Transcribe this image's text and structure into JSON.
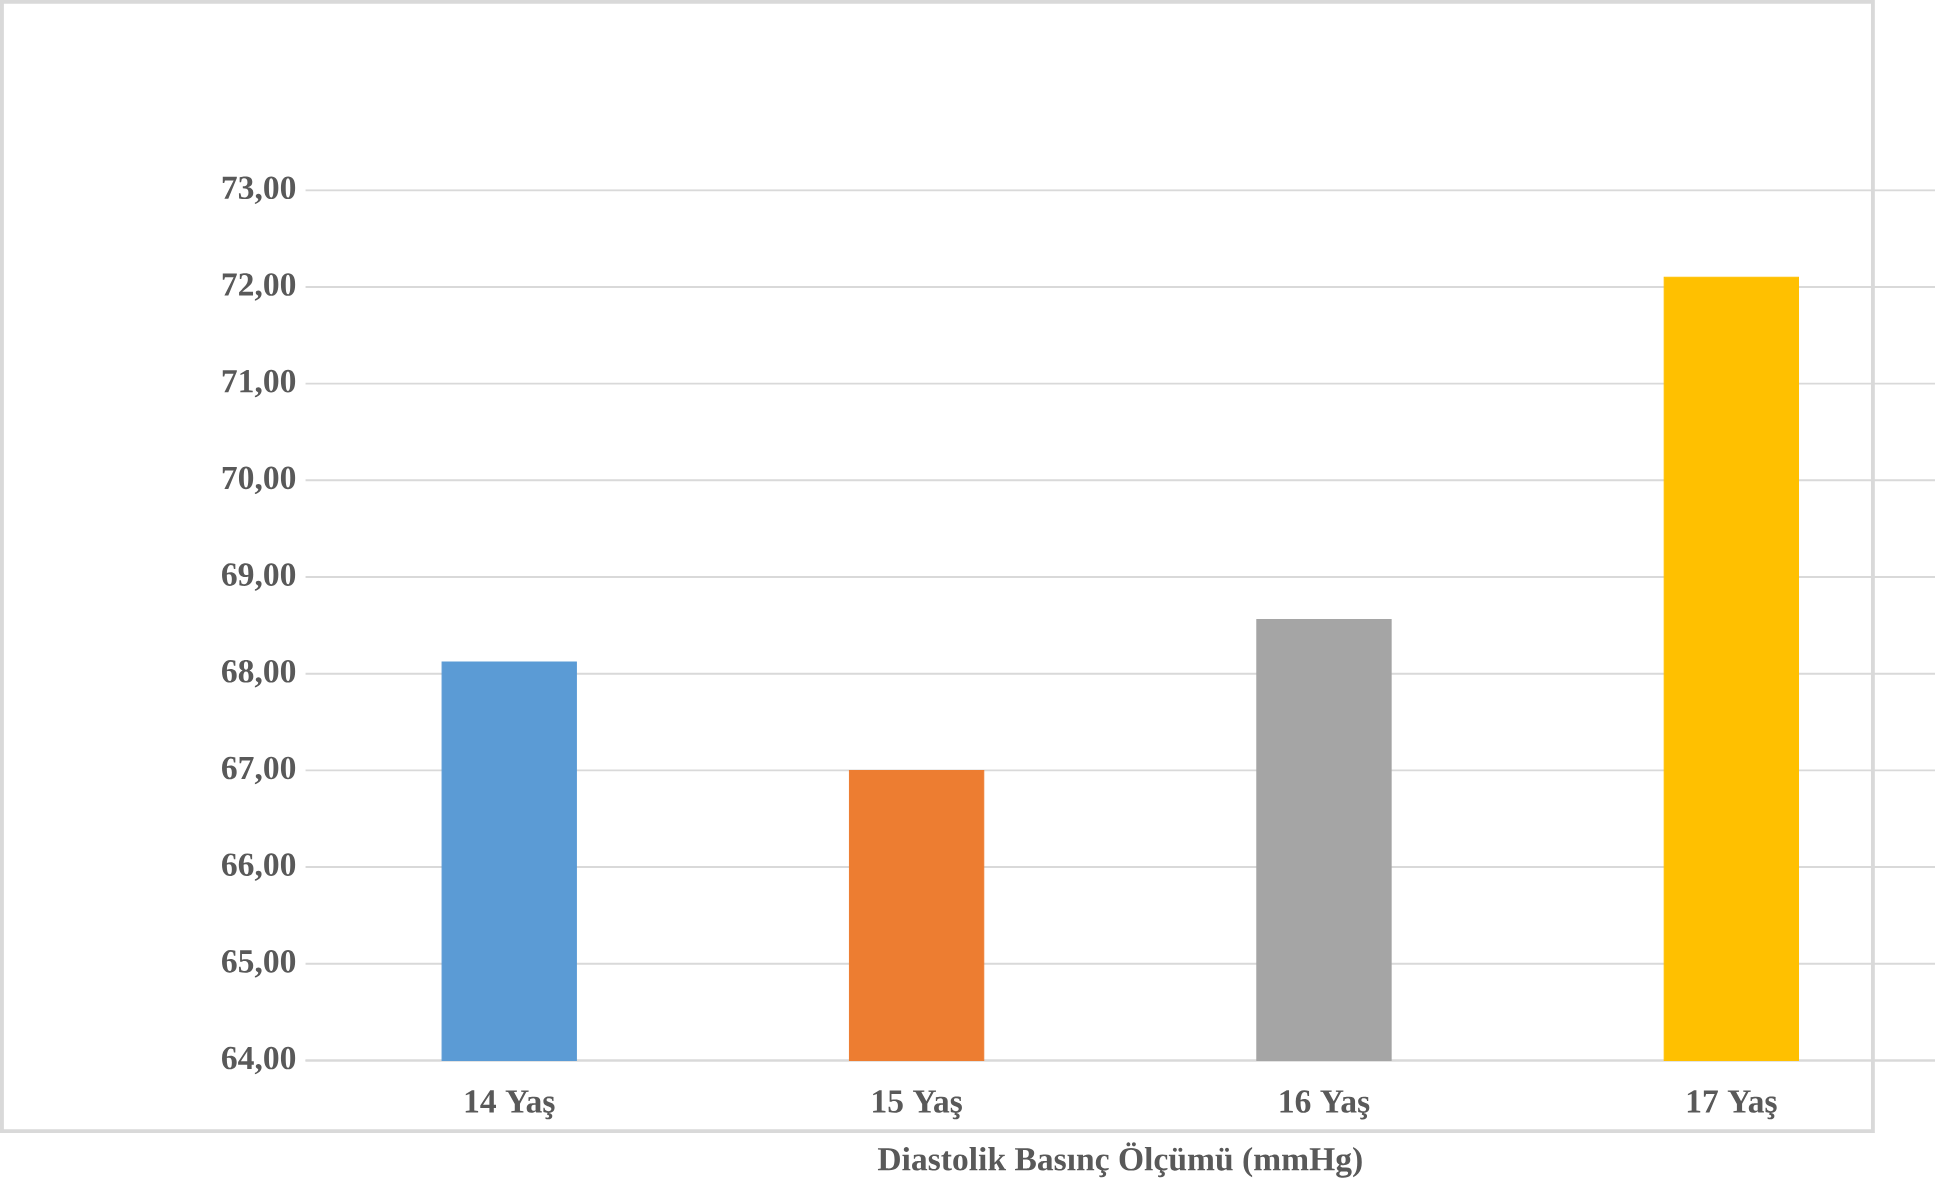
{
  "chart_data": {
    "type": "bar",
    "xlabel": "Diastolik Basınç Ölçümü (mmHg)",
    "categories": [
      "14 Yaş",
      "15 Yaş",
      "16 Yaş",
      "17 Yaş"
    ],
    "values": [
      68.12,
      67.0,
      68.56,
      72.1
    ],
    "colors": [
      "#5b9bd5",
      "#ed7d31",
      "#a5a5a5",
      "#ffc000"
    ],
    "ylim": [
      64,
      73
    ],
    "yticks": [
      {
        "value": 64,
        "label": "64,00"
      },
      {
        "value": 65,
        "label": "65,00"
      },
      {
        "value": 66,
        "label": "66,00"
      },
      {
        "value": 67,
        "label": "67,00"
      },
      {
        "value": 68,
        "label": "68,00"
      },
      {
        "value": 69,
        "label": "69,00"
      },
      {
        "value": 70,
        "label": "70,00"
      },
      {
        "value": 71,
        "label": "71,00"
      },
      {
        "value": 72,
        "label": "72,00"
      },
      {
        "value": 73,
        "label": "73,00"
      }
    ],
    "grid": "y"
  }
}
